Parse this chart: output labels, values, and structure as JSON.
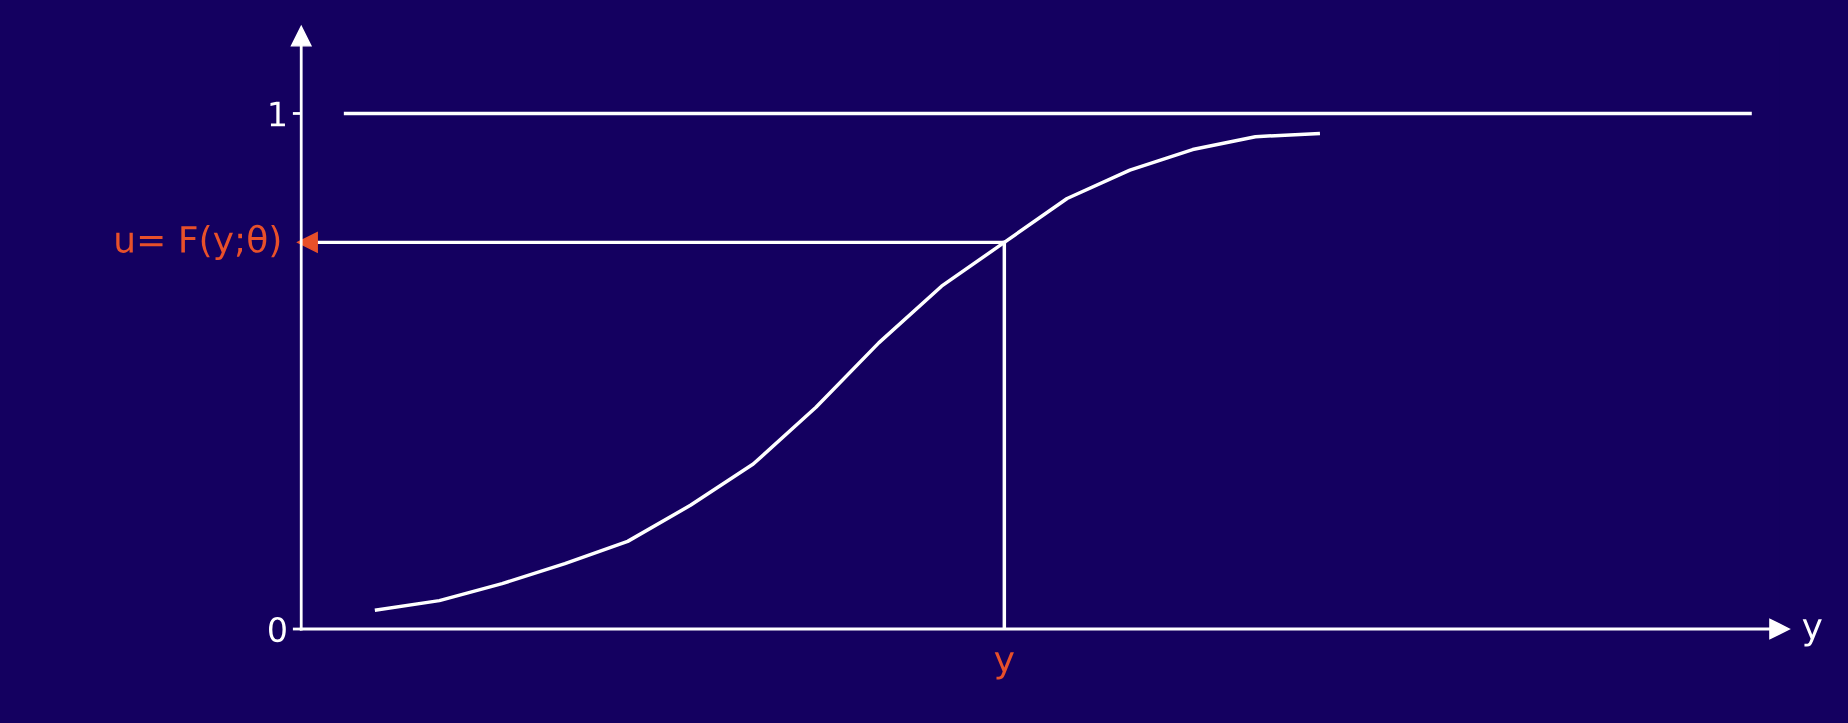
{
  "chart_data": {
    "type": "line",
    "categories": [
      null,
      null,
      null,
      null,
      null,
      null,
      null,
      null,
      null,
      null,
      null,
      null,
      null,
      null,
      null,
      null
    ],
    "series": [
      {
        "color": "#ffffff",
        "values": [
          0.037,
          0.055,
          0.088,
          0.127,
          0.17,
          0.24,
          0.32,
          0.43,
          0.555,
          0.665,
          0.75,
          0.835,
          0.89,
          0.93,
          0.955,
          0.961
        ]
      }
    ],
    "ylim": [
      0,
      1.15
    ],
    "yticks": [
      0,
      1
    ],
    "ref_lines": [
      {
        "axis": "y",
        "value": 1,
        "color": "#ffffff"
      },
      {
        "axis": "y",
        "value": 0.75,
        "label": "u= F(y;θ)",
        "color": "#ffffff"
      }
    ],
    "annotations": [
      "y",
      "y"
    ],
    "grid": false,
    "legend": false,
    "marker": "none",
    "line_style": "solid"
  }
}
